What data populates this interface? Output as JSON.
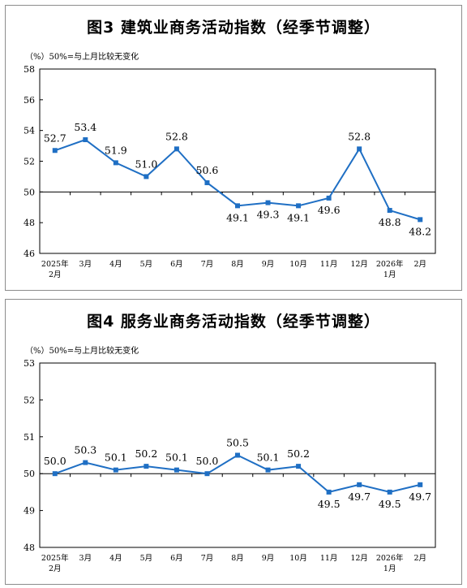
{
  "chart_data": [
    {
      "type": "line",
      "title": "图3  建筑业商务活动指数（经季节调整）",
      "note": "（%）50%=与上月比较无变化",
      "categories": [
        "2025年\n2月",
        "3月",
        "4月",
        "5月",
        "6月",
        "7月",
        "8月",
        "9月",
        "10月",
        "11月",
        "12月",
        "2026年\n1月",
        "2月"
      ],
      "values": [
        52.7,
        53.4,
        51.9,
        51.0,
        52.8,
        50.6,
        49.1,
        49.3,
        49.1,
        49.6,
        52.8,
        48.8,
        48.2
      ],
      "labels": [
        "52.7",
        "53.4",
        "51.9",
        "51.0",
        "52.8",
        "50.6",
        "49.1",
        "49.3",
        "49.1",
        "49.6",
        "52.8",
        "48.8",
        "48.2"
      ],
      "label_pos": [
        "above",
        "above",
        "above",
        "above",
        "above",
        "above",
        "below",
        "below",
        "below",
        "below",
        "above",
        "below",
        "below"
      ],
      "ylim": [
        46,
        58
      ],
      "yticks": [
        "46",
        "48",
        "50",
        "52",
        "54",
        "56",
        "58"
      ],
      "baseline": 50,
      "color": "#1f6fc4"
    },
    {
      "type": "line",
      "title": "图4  服务业商务活动指数（经季节调整）",
      "note": "（%）50%=与上月比较无变化",
      "categories": [
        "2025年\n2月",
        "3月",
        "4月",
        "5月",
        "6月",
        "7月",
        "8月",
        "9月",
        "10月",
        "11月",
        "12月",
        "2026年\n1月",
        "2月"
      ],
      "values": [
        50.0,
        50.3,
        50.1,
        50.2,
        50.1,
        50.0,
        50.5,
        50.1,
        50.2,
        49.5,
        49.7,
        49.5,
        49.7
      ],
      "labels": [
        "50.0",
        "50.3",
        "50.1",
        "50.2",
        "50.1",
        "50.0",
        "50.5",
        "50.1",
        "50.2",
        "49.5",
        "49.7",
        "49.5",
        "49.7"
      ],
      "label_pos": [
        "above",
        "above",
        "above",
        "above",
        "above",
        "above",
        "above",
        "above",
        "above",
        "below",
        "below",
        "below",
        "below"
      ],
      "ylim": [
        48,
        53
      ],
      "yticks": [
        "48",
        "49",
        "50",
        "51",
        "52",
        "53"
      ],
      "baseline": 50,
      "color": "#1f6fc4"
    }
  ]
}
